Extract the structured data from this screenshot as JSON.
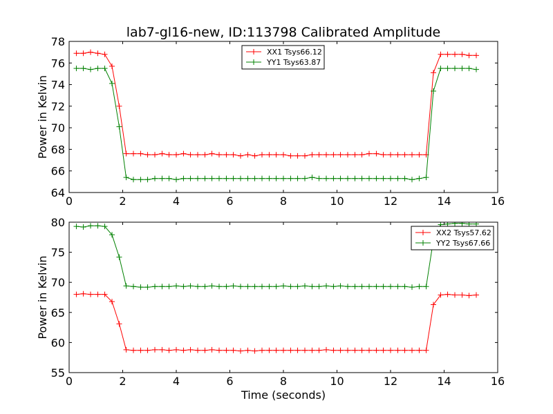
{
  "figure": {
    "title": "lab7-gl16-new, ID:113798 Calibrated Amplitude"
  },
  "chart_data": [
    {
      "type": "line",
      "title": "lab7-gl16-new, ID:113798 Calibrated Amplitude",
      "xlabel": "",
      "ylabel": "Power in Kelvin",
      "xlim": [
        0,
        16
      ],
      "ylim": [
        64,
        78
      ],
      "xticks": [
        "0",
        "2",
        "4",
        "6",
        "8",
        "10",
        "12",
        "14",
        "16"
      ],
      "yticks": [
        "64",
        "66",
        "68",
        "70",
        "72",
        "74",
        "76",
        "78"
      ],
      "grid": false,
      "legend_position": "top-center",
      "x": [
        0.27,
        0.53,
        0.8,
        1.07,
        1.33,
        1.6,
        1.87,
        2.13,
        2.4,
        2.67,
        2.93,
        3.2,
        3.47,
        3.73,
        4.0,
        4.27,
        4.53,
        4.8,
        5.07,
        5.33,
        5.6,
        5.87,
        6.13,
        6.4,
        6.67,
        6.93,
        7.2,
        7.47,
        7.73,
        8.0,
        8.27,
        8.53,
        8.8,
        9.07,
        9.33,
        9.6,
        9.87,
        10.13,
        10.4,
        10.67,
        10.93,
        11.2,
        11.47,
        11.73,
        12.0,
        12.27,
        12.53,
        12.8,
        13.07,
        13.33,
        13.6,
        13.87,
        14.13,
        14.4,
        14.67,
        14.93,
        15.2
      ],
      "series": [
        {
          "name": "XX1 Tsys66.12",
          "color": "#ff0000",
          "values": [
            76.9,
            76.9,
            77.0,
            76.9,
            76.8,
            75.7,
            72.0,
            67.6,
            67.6,
            67.6,
            67.5,
            67.5,
            67.6,
            67.5,
            67.5,
            67.6,
            67.5,
            67.5,
            67.5,
            67.6,
            67.5,
            67.5,
            67.5,
            67.4,
            67.5,
            67.4,
            67.5,
            67.5,
            67.5,
            67.5,
            67.4,
            67.4,
            67.4,
            67.5,
            67.5,
            67.5,
            67.5,
            67.5,
            67.5,
            67.5,
            67.5,
            67.6,
            67.6,
            67.5,
            67.5,
            67.5,
            67.5,
            67.5,
            67.5,
            67.5,
            75.1,
            76.8,
            76.8,
            76.8,
            76.8,
            76.7,
            76.7
          ]
        },
        {
          "name": "YY1 Tsys63.87",
          "color": "#008000",
          "values": [
            75.5,
            75.5,
            75.4,
            75.5,
            75.5,
            74.1,
            70.1,
            65.4,
            65.2,
            65.2,
            65.2,
            65.3,
            65.3,
            65.3,
            65.2,
            65.3,
            65.3,
            65.3,
            65.3,
            65.3,
            65.3,
            65.3,
            65.3,
            65.3,
            65.3,
            65.3,
            65.3,
            65.3,
            65.3,
            65.3,
            65.3,
            65.3,
            65.3,
            65.4,
            65.3,
            65.3,
            65.3,
            65.3,
            65.3,
            65.3,
            65.3,
            65.3,
            65.3,
            65.3,
            65.3,
            65.3,
            65.3,
            65.2,
            65.3,
            65.4,
            73.4,
            75.5,
            75.5,
            75.5,
            75.5,
            75.5,
            75.4
          ]
        }
      ]
    },
    {
      "type": "line",
      "title": "",
      "xlabel": "Time (seconds)",
      "ylabel": "Power in Kelvin",
      "xlim": [
        0,
        16
      ],
      "ylim": [
        55,
        80
      ],
      "xticks": [
        "0",
        "2",
        "4",
        "6",
        "8",
        "10",
        "12",
        "14",
        "16"
      ],
      "yticks": [
        "55",
        "60",
        "65",
        "70",
        "75",
        "80"
      ],
      "grid": false,
      "legend_position": "top-right",
      "x": [
        0.27,
        0.53,
        0.8,
        1.07,
        1.33,
        1.6,
        1.87,
        2.13,
        2.4,
        2.67,
        2.93,
        3.2,
        3.47,
        3.73,
        4.0,
        4.27,
        4.53,
        4.8,
        5.07,
        5.33,
        5.6,
        5.87,
        6.13,
        6.4,
        6.67,
        6.93,
        7.2,
        7.47,
        7.73,
        8.0,
        8.27,
        8.53,
        8.8,
        9.07,
        9.33,
        9.6,
        9.87,
        10.13,
        10.4,
        10.67,
        10.93,
        11.2,
        11.47,
        11.73,
        12.0,
        12.27,
        12.53,
        12.8,
        13.07,
        13.33,
        13.6,
        13.87,
        14.13,
        14.4,
        14.67,
        14.93,
        15.2
      ],
      "series": [
        {
          "name": "XX2 Tsys57.62",
          "color": "#ff0000",
          "values": [
            68.0,
            68.1,
            68.0,
            68.0,
            68.0,
            66.8,
            63.1,
            58.8,
            58.7,
            58.7,
            58.7,
            58.8,
            58.8,
            58.7,
            58.8,
            58.7,
            58.8,
            58.7,
            58.7,
            58.8,
            58.7,
            58.7,
            58.7,
            58.6,
            58.7,
            58.6,
            58.7,
            58.7,
            58.7,
            58.7,
            58.7,
            58.7,
            58.7,
            58.7,
            58.7,
            58.8,
            58.7,
            58.7,
            58.7,
            58.7,
            58.7,
            58.7,
            58.7,
            58.7,
            58.7,
            58.7,
            58.7,
            58.7,
            58.7,
            58.7,
            66.3,
            67.9,
            68.0,
            67.9,
            67.9,
            67.8,
            67.9
          ]
        },
        {
          "name": "YY2 Tsys67.66",
          "color": "#008000",
          "values": [
            79.3,
            79.2,
            79.4,
            79.4,
            79.3,
            77.9,
            74.2,
            69.4,
            69.3,
            69.2,
            69.2,
            69.3,
            69.3,
            69.3,
            69.4,
            69.3,
            69.4,
            69.3,
            69.3,
            69.4,
            69.3,
            69.3,
            69.4,
            69.3,
            69.3,
            69.3,
            69.3,
            69.3,
            69.3,
            69.4,
            69.3,
            69.3,
            69.4,
            69.3,
            69.3,
            69.4,
            69.3,
            69.4,
            69.3,
            69.3,
            69.3,
            69.3,
            69.3,
            69.3,
            69.3,
            69.3,
            69.3,
            69.2,
            69.3,
            69.3,
            77.1,
            79.6,
            79.7,
            79.8,
            79.8,
            79.7,
            79.7
          ]
        }
      ]
    }
  ]
}
